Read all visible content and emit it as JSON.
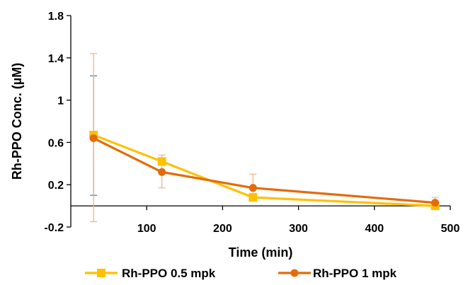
{
  "chart_data": {
    "type": "line",
    "title": "",
    "xlabel": "Time (min)",
    "ylabel": "Rh-PPO  Conc. (µM)",
    "xlim": [
      0,
      500
    ],
    "ylim": [
      -0.2,
      1.8
    ],
    "xticks": [
      100,
      200,
      300,
      400,
      500
    ],
    "yticks": [
      -0.2,
      0.2,
      0.6,
      1,
      1.4,
      1.8
    ],
    "ytick_labels": [
      "-0.2",
      "0.2",
      "0.6",
      "1",
      "1.4",
      "1.8"
    ],
    "xtick_labels": [
      "100",
      "200",
      "300",
      "400",
      "500"
    ],
    "grid": false,
    "legend_position": "bottom",
    "series": [
      {
        "name": "Rh-PPO 0.5 mpk",
        "color": "#FFC000",
        "marker": "square",
        "x": [
          30,
          120,
          240,
          480
        ],
        "y": [
          0.67,
          0.42,
          0.08,
          0.0
        ],
        "error_color": "#4472C4",
        "error_low": [
          0.1,
          null,
          0.06,
          null
        ],
        "error_high": [
          1.23,
          null,
          0.1,
          null
        ]
      },
      {
        "name": "Rh-PPO 1 mpk",
        "color": "#E36C0A",
        "marker": "circle",
        "x": [
          30,
          120,
          240,
          480
        ],
        "y": [
          0.64,
          0.32,
          0.17,
          0.03
        ],
        "error_color": "#F4B183",
        "error_low": [
          -0.15,
          0.17,
          0.07,
          0.0
        ],
        "error_high": [
          1.44,
          0.48,
          0.3,
          0.08
        ]
      }
    ]
  }
}
